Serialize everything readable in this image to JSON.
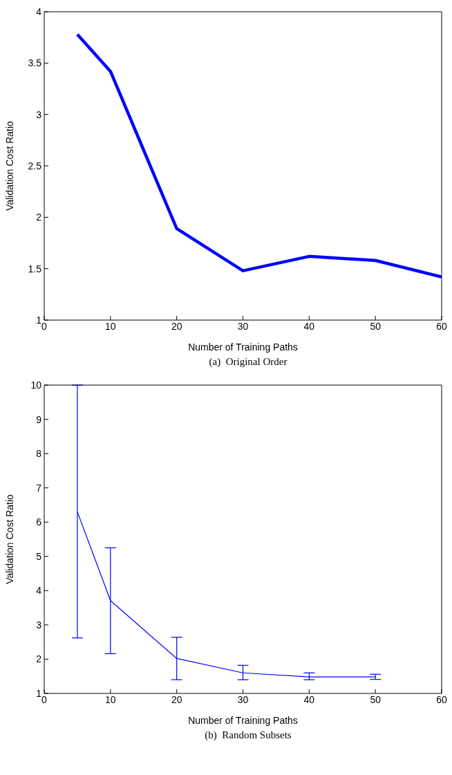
{
  "chart_data": [
    {
      "type": "line",
      "xlabel": "Number of Training Paths",
      "ylabel": "Validation Cost Ratio",
      "annotations": [
        "(a)  Original Order"
      ],
      "x": [
        5,
        10,
        20,
        30,
        40,
        50,
        60
      ],
      "values": [
        3.78,
        3.42,
        1.89,
        1.48,
        1.62,
        1.58,
        1.42
      ],
      "color": "#0000ff",
      "xlim": [
        0,
        60
      ],
      "xticks": [
        0,
        10,
        20,
        30,
        40,
        50,
        60
      ],
      "ylim": [
        1,
        4
      ],
      "yticks": [
        1,
        1.5,
        2,
        2.5,
        3,
        3.5,
        4
      ],
      "grid": false,
      "legend": false
    },
    {
      "type": "line",
      "xlabel": "Number of Training Paths",
      "ylabel": "Validation Cost Ratio",
      "annotations": [
        "(b)  Random Subsets"
      ],
      "x": [
        5,
        10,
        20,
        30,
        40,
        50
      ],
      "values": [
        6.3,
        3.71,
        2.02,
        1.6,
        1.48,
        1.48
      ],
      "color": "#0000ff",
      "errors": [
        [
          2.62,
          10
        ],
        [
          2.16,
          5.25
        ],
        [
          1.4,
          2.64
        ],
        [
          1.4,
          1.82
        ],
        [
          1.4,
          1.6
        ],
        [
          1.41,
          1.56
        ]
      ],
      "xlim": [
        0,
        60
      ],
      "xticks": [
        0,
        10,
        20,
        30,
        40,
        50,
        60
      ],
      "ylim": [
        1,
        10
      ],
      "yticks": [
        1,
        2,
        3,
        4,
        5,
        6,
        7,
        8,
        9,
        10
      ],
      "grid": false,
      "legend": false
    }
  ]
}
